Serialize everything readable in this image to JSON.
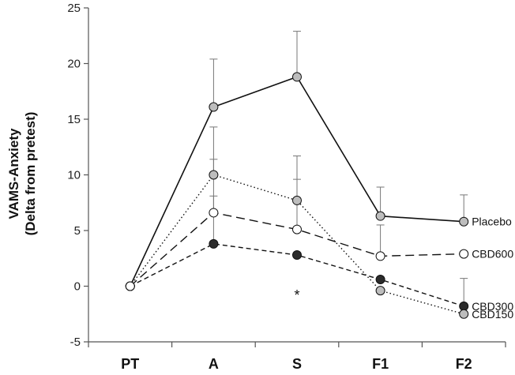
{
  "chart_data": {
    "type": "line",
    "categories": [
      "PT",
      "A",
      "S",
      "F1",
      "F2"
    ],
    "ylabel_line1": "VAMS-Anxiety",
    "ylabel_line2": "(Delta from pretest)",
    "ylim": [
      -5,
      25
    ],
    "yticks": [
      -5,
      0,
      5,
      10,
      15,
      20,
      25
    ],
    "grid": false,
    "legend_placement": "right-end-labels",
    "series": [
      {
        "name": "Placebo",
        "values": [
          0,
          16.1,
          18.8,
          6.3,
          5.8
        ],
        "errors": [
          0,
          4.3,
          4.1,
          2.6,
          2.4
        ],
        "line_style": "solid",
        "marker_fill": "#bdbdbd"
      },
      {
        "name": "CBD600",
        "values": [
          0,
          6.6,
          5.1,
          2.7,
          2.9
        ],
        "errors": [
          0,
          4.8,
          4.5,
          2.8,
          0
        ],
        "line_style": "long-dash",
        "marker_fill": "#ffffff"
      },
      {
        "name": "CBD300",
        "values": [
          0,
          3.8,
          2.8,
          0.6,
          -1.8
        ],
        "errors": [
          0,
          4.3,
          0,
          0,
          2.5
        ],
        "line_style": "short-dash",
        "marker_fill": "#2b2b2b"
      },
      {
        "name": "CBD150",
        "values": [
          0,
          10.0,
          7.7,
          -0.4,
          -2.5
        ],
        "errors": [
          0,
          4.3,
          4.0,
          0,
          0
        ],
        "line_style": "dotted",
        "marker_fill": "#bdbdbd"
      }
    ],
    "annotations": [
      {
        "text": "*",
        "x": "S",
        "y": -0.8
      }
    ]
  }
}
